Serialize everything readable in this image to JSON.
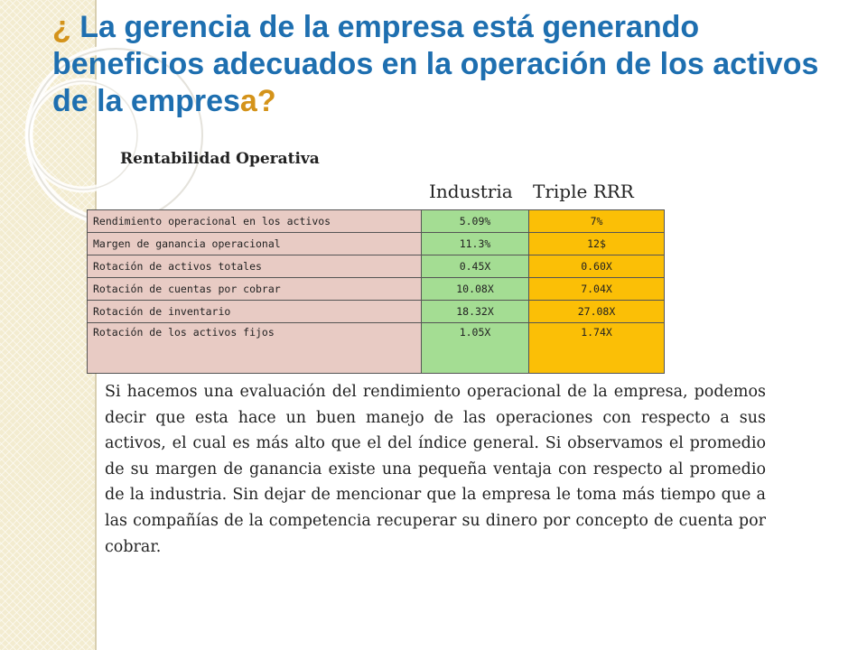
{
  "title": {
    "q_open": "¿",
    "text": " La gerencia de la empresa está generando beneficios adecuados en la operación de los activos de la empres",
    "last_char": "a",
    "q_close": "?"
  },
  "section_title": "Rentabilidad Operativa",
  "columns": {
    "industry": "Industria",
    "company": "Triple RRR"
  },
  "rows": [
    {
      "label": "Rendimiento operacional en los activos",
      "industry": "5.09%",
      "company": "7%"
    },
    {
      "label": "Margen de ganancia operacional",
      "industry": "11.3%",
      "company": "12$"
    },
    {
      "label": "Rotación de activos totales",
      "industry": "0.45X",
      "company": "0.60X"
    },
    {
      "label": "Rotación de cuentas por cobrar",
      "industry": "10.08X",
      "company": "7.04X"
    },
    {
      "label": "Rotación de inventario",
      "industry": "18.32X",
      "company": "27.08X"
    },
    {
      "label": "Rotación de los activos fijos",
      "industry": "1.05X",
      "company": "1.74X"
    }
  ],
  "paragraph": "Si hacemos una evaluación del rendimiento operacional de la empresa, podemos decir que esta hace un buen manejo de las operaciones con respecto a sus activos, el cual es más alto que el del índice general. Si observamos el promedio de su margen de ganancia  existe una pequeña ventaja con respecto al promedio de la industria. Sin dejar de mencionar que la empresa le toma más tiempo que a las compañías de la competencia recuperar su dinero por concepto de cuenta por cobrar.",
  "colors": {
    "title": "#1e6fb0",
    "question_marks": "#d4931a",
    "label_cells": "#e8cbc4",
    "industry_cells": "#a4dd93",
    "company_cells": "#fbbf06"
  }
}
